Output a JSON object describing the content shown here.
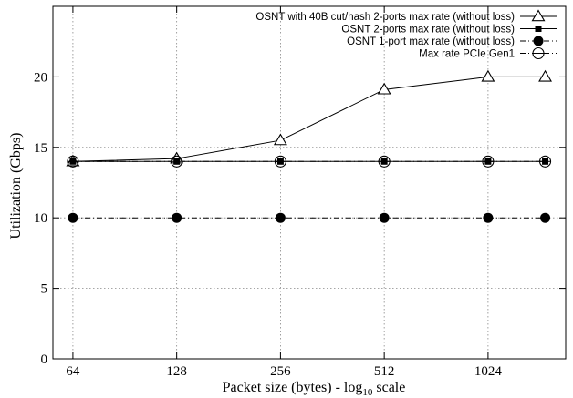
{
  "chart_data": {
    "type": "line",
    "xscale": "log",
    "x": [
      64,
      128,
      256,
      512,
      1024,
      1500
    ],
    "xticks": [
      64,
      128,
      256,
      512,
      1024
    ],
    "xlim": [
      56,
      1720
    ],
    "yticks": [
      0,
      5,
      10,
      15,
      20
    ],
    "ylim": [
      0,
      25
    ],
    "xlabel_main": "Packet size (bytes) - log",
    "xlabel_sub": "10",
    "xlabel_tail": " scale",
    "ylabel": "Utilization (Gbps)",
    "grid": true,
    "legend_position": "top-right",
    "series": [
      {
        "name": "OSNT with 40B cut/hash 2-ports max rate (without loss)",
        "values": [
          14,
          14.2,
          15.5,
          19.1,
          20,
          20
        ],
        "marker": "open-triangle",
        "line": "solid"
      },
      {
        "name": "OSNT 2-ports max rate (without loss)",
        "values": [
          14,
          14,
          14,
          14,
          14,
          14
        ],
        "marker": "filled-square",
        "line": "solid"
      },
      {
        "name": "OSNT 1-port max rate (without loss)",
        "values": [
          10,
          10,
          10,
          10,
          10,
          10
        ],
        "marker": "filled-circle",
        "line": "dash-dot"
      },
      {
        "name": "Max rate PCIe Gen1",
        "values": [
          14,
          14,
          14,
          14,
          14,
          14
        ],
        "marker": "open-circle",
        "line": "dash-dot"
      }
    ]
  }
}
